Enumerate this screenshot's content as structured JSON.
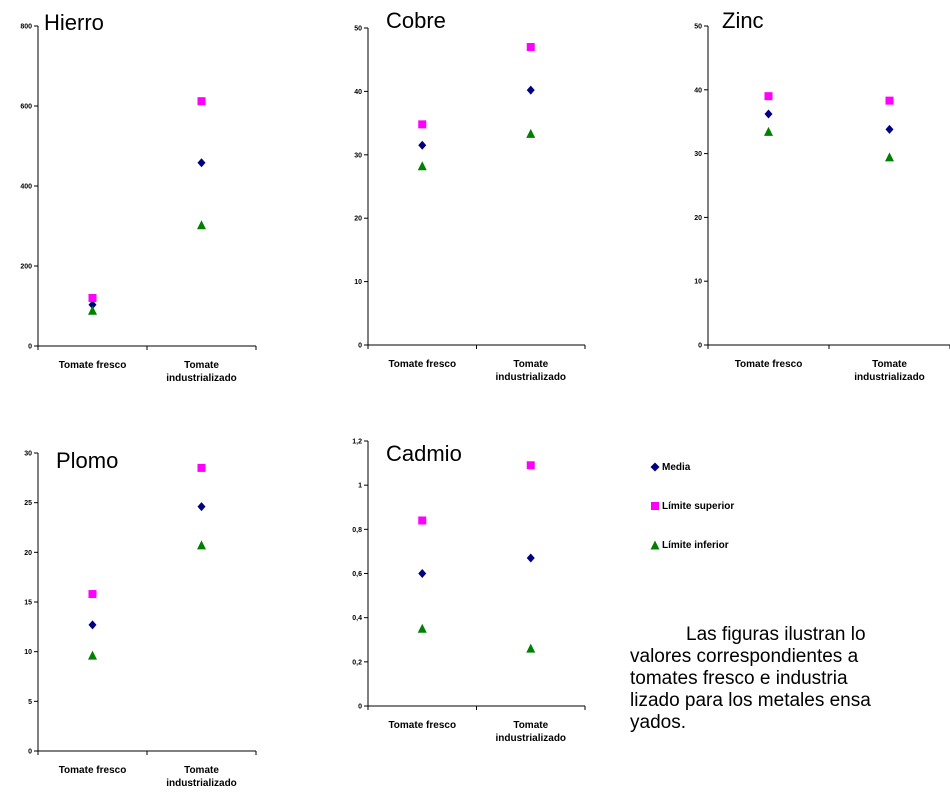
{
  "colors": {
    "media": "#000080",
    "limite_superior": "#FF00FF",
    "limite_inferior": "#008000"
  },
  "legend": {
    "items": [
      {
        "label": "Media",
        "marker": "diamond",
        "color": "#000080"
      },
      {
        "label": "Límite superior",
        "marker": "square",
        "color": "#FF00FF"
      },
      {
        "label": "Límite inferior",
        "marker": "triangle",
        "color": "#008000"
      }
    ]
  },
  "caption": {
    "lines": [
      "Las figuras ilustran lo",
      "valores correspondientes a",
      "tomates fresco e industria",
      "lizado para los metales ensa",
      "yados."
    ]
  },
  "chart_data": [
    {
      "type": "scatter",
      "title": "Hierro",
      "categories": [
        "Tomate fresco",
        "Tomate industrializado"
      ],
      "ylim": [
        0,
        800
      ],
      "yticks": [
        "0",
        "200",
        "400",
        "600",
        "800"
      ],
      "series": [
        {
          "name": "Media",
          "marker": "diamond",
          "values": [
            103,
            458
          ]
        },
        {
          "name": "Límite superior",
          "marker": "square",
          "values": [
            120,
            612
          ]
        },
        {
          "name": "Límite inferior",
          "marker": "triangle",
          "values": [
            88,
            302
          ]
        }
      ]
    },
    {
      "type": "scatter",
      "title": "Cobre",
      "categories": [
        "Tomate fresco",
        "Tomate industrializado"
      ],
      "ylim": [
        0,
        50
      ],
      "yticks": [
        "0",
        "10",
        "20",
        "30",
        "40",
        "50"
      ],
      "series": [
        {
          "name": "Media",
          "marker": "diamond",
          "values": [
            31.5,
            40.2
          ]
        },
        {
          "name": "Límite superior",
          "marker": "square",
          "values": [
            34.8,
            47.0
          ]
        },
        {
          "name": "Límite inferior",
          "marker": "triangle",
          "values": [
            28.2,
            33.3
          ]
        }
      ]
    },
    {
      "type": "scatter",
      "title": "Zinc",
      "categories": [
        "Tomate fresco",
        "Tomate industrializado"
      ],
      "ylim": [
        0,
        50
      ],
      "yticks": [
        "0",
        "10",
        "20",
        "30",
        "40",
        "50"
      ],
      "series": [
        {
          "name": "Media",
          "marker": "diamond",
          "values": [
            36.2,
            33.8
          ]
        },
        {
          "name": "Límite superior",
          "marker": "square",
          "values": [
            39.0,
            38.3
          ]
        },
        {
          "name": "Límite inferior",
          "marker": "triangle",
          "values": [
            33.4,
            29.4
          ]
        }
      ]
    },
    {
      "type": "scatter",
      "title": "Plomo",
      "categories": [
        "Tomate fresco",
        "Tomate industrializado"
      ],
      "ylim": [
        0,
        30
      ],
      "yticks": [
        "0",
        "5",
        "10",
        "15",
        "20",
        "25",
        "30"
      ],
      "series": [
        {
          "name": "Media",
          "marker": "diamond",
          "values": [
            12.7,
            24.6
          ]
        },
        {
          "name": "Límite superior",
          "marker": "square",
          "values": [
            15.8,
            28.5
          ]
        },
        {
          "name": "Límite inferior",
          "marker": "triangle",
          "values": [
            9.6,
            20.7
          ]
        }
      ]
    },
    {
      "type": "scatter",
      "title": "Cadmio",
      "categories": [
        "Tomate fresco",
        "Tomate industrializado"
      ],
      "ylim": [
        0,
        1.2
      ],
      "yticks": [
        "0",
        "0,2",
        "0,4",
        "0,6",
        "0,8",
        "1",
        "1,2"
      ],
      "series": [
        {
          "name": "Media",
          "marker": "diamond",
          "values": [
            0.6,
            0.67
          ]
        },
        {
          "name": "Límite superior",
          "marker": "square",
          "values": [
            0.84,
            1.09
          ]
        },
        {
          "name": "Límite inferior",
          "marker": "triangle",
          "values": [
            0.35,
            0.26
          ]
        }
      ]
    }
  ]
}
